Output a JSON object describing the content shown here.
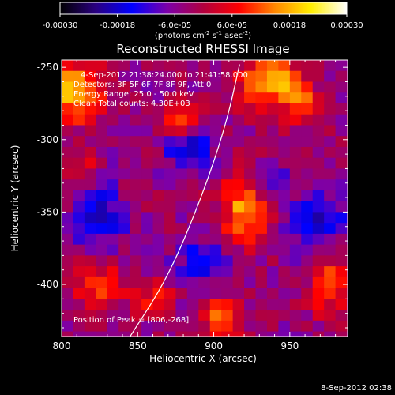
{
  "chart_data": {
    "type": "heatmap",
    "title": "Reconstructed RHESSI Image",
    "xlabel": "Heliocentric X (arcsec)",
    "ylabel": "Heliocentric Y (arcsec)",
    "xlim": [
      800,
      988
    ],
    "ylim": [
      -436,
      -245
    ],
    "xticks": [
      800,
      850,
      900,
      950
    ],
    "yticks": [
      -250,
      -300,
      -350,
      -400
    ],
    "colorbar": {
      "range": [
        -0.0003,
        0.0003
      ],
      "tick_values": [
        -0.0003,
        -0.00018,
        -6e-05,
        6e-05,
        0.00018,
        0.0003
      ],
      "tick_labels": [
        "-0.00030",
        "-0.00018",
        "-6.0e-05",
        "6.0e-05",
        "0.00018",
        "0.00030"
      ],
      "units_prefix": "(photons cm",
      "units_exp1": "-2",
      "units_mid": " s",
      "units_exp2": "-1",
      "units_mid2": " asec",
      "units_exp3": "-2",
      "units_suffix": ")"
    },
    "annotations": {
      "time_range": "4-Sep-2012 21:38:24.000 to 21:41:58.000",
      "detectors": "Detectors: 3F 5F 6F 7F 8F 9F, Att 0",
      "energy": "Energy Range: 25.0 - 50.0 keV",
      "clean": "Clean     Total counts: 4.30E+03",
      "peak": "Position of Peak = [806,-268]"
    },
    "limb_curve": [
      [
        845,
        -436
      ],
      [
        870,
        -395
      ],
      [
        892,
        -340
      ],
      [
        908,
        -290
      ],
      [
        917,
        -248
      ]
    ],
    "blob_sources": [
      {
        "x": 808,
        "y": -268,
        "amp": 0.00024,
        "sx": 13,
        "sy": 14
      },
      {
        "x": 880,
        "y": -286,
        "amp": 0.0002,
        "sx": 9,
        "sy": 9
      },
      {
        "x": 938,
        "y": -260,
        "amp": 0.00022,
        "sx": 15,
        "sy": 12
      },
      {
        "x": 920,
        "y": -348,
        "amp": 0.00021,
        "sx": 11,
        "sy": 16
      },
      {
        "x": 957,
        "y": -276,
        "amp": 0.00013,
        "sx": 9,
        "sy": 9
      },
      {
        "x": 825,
        "y": -400,
        "amp": 0.00014,
        "sx": 13,
        "sy": 10
      },
      {
        "x": 905,
        "y": -425,
        "amp": 0.00016,
        "sx": 9,
        "sy": 11
      },
      {
        "x": 975,
        "y": -400,
        "amp": 0.00016,
        "sx": 8,
        "sy": 14
      },
      {
        "x": 860,
        "y": -410,
        "amp": 0.00011,
        "sx": 9,
        "sy": 9
      },
      {
        "x": 813,
        "y": -320,
        "amp": 0.0001,
        "sx": 7,
        "sy": 7
      },
      {
        "x": 884,
        "y": -305,
        "amp": -0.00015,
        "sx": 10,
        "sy": 12
      },
      {
        "x": 825,
        "y": -353,
        "amp": -0.00013,
        "sx": 12,
        "sy": 14
      },
      {
        "x": 895,
        "y": -385,
        "amp": -0.00014,
        "sx": 12,
        "sy": 9
      },
      {
        "x": 968,
        "y": -358,
        "amp": -0.00015,
        "sx": 12,
        "sy": 12
      },
      {
        "x": 935,
        "y": -330,
        "amp": -0.0001,
        "sx": 10,
        "sy": 9
      }
    ],
    "grid": false,
    "legend": "none"
  },
  "footer": {
    "date": "8-Sep-2012 02:38"
  },
  "colormap_stops": [
    "#000000",
    "#2a0080",
    "#0000ff",
    "#7d00a8",
    "#b2003e",
    "#ff0000",
    "#ff8800",
    "#ffee00",
    "#ffffff"
  ]
}
